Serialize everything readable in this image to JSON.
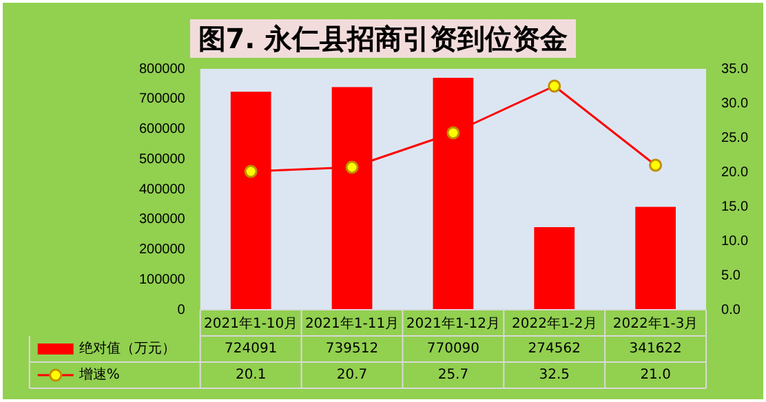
{
  "chart_data": {
    "type": "bar",
    "title": "图7. 永仁县招商引资到位资金",
    "categories": [
      "2021年1-10月",
      "2021年1-11月",
      "2021年1-12月",
      "2022年1-2月",
      "2022年1-3月"
    ],
    "series": [
      {
        "name": "绝对值（万元）",
        "color": "#ff0000",
        "values": [
          724091,
          739512,
          770090,
          274562,
          341622
        ],
        "value_labels": [
          "724091",
          "739512",
          "770090",
          "274562",
          "341622"
        ]
      },
      {
        "name": "增速%",
        "type": "line",
        "axis": "y2",
        "color": "#ff0000",
        "marker": "circle",
        "values": [
          20.1,
          20.7,
          25.7,
          32.5,
          21.0
        ],
        "value_labels": [
          "20.1",
          "20.7",
          "25.7",
          "32.5",
          "21.0"
        ]
      }
    ],
    "ylim": [
      0,
      800000
    ],
    "yticks": [
      0,
      100000,
      200000,
      300000,
      400000,
      500000,
      600000,
      700000,
      800000
    ],
    "y2lim": [
      0,
      35
    ],
    "y2ticks": [
      {
        "value": 0,
        "label": "0.0"
      },
      {
        "value": 5,
        "label": "5.0"
      },
      {
        "value": 10,
        "label": "10.0"
      },
      {
        "value": 15,
        "label": "15.0"
      },
      {
        "value": 20,
        "label": "20.0"
      },
      {
        "value": 25,
        "label": "25.0"
      },
      {
        "value": 30,
        "label": "30.0"
      },
      {
        "value": 35,
        "label": "35.0"
      }
    ],
    "legend": "bottom left"
  }
}
